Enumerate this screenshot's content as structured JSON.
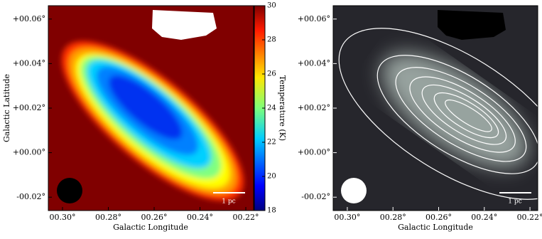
{
  "chart_data": [
    {
      "type": "image",
      "xlabel": "Galactic Longitude",
      "ylabel": "Galactic Latitude",
      "xlim": [
        0.3062,
        0.2166
      ],
      "ylim": [
        -0.026,
        0.066
      ],
      "xticks": [
        {
          "value": 0.3,
          "label": "00.30°"
        },
        {
          "value": 0.28,
          "label": "00.28°"
        },
        {
          "value": 0.26,
          "label": "00.26°"
        },
        {
          "value": 0.24,
          "label": "00.24°"
        },
        {
          "value": 0.22,
          "label": "00.22°"
        }
      ],
      "yticks": [
        {
          "value": 0.06,
          "label": "+00.06°"
        },
        {
          "value": 0.04,
          "label": "+00.04°"
        },
        {
          "value": 0.02,
          "label": "+00.02°"
        },
        {
          "value": 0.0,
          "label": "+00.00°"
        },
        {
          "value": -0.02,
          "label": "-00.02°"
        }
      ],
      "colorbar": {
        "label": "Temperature (K)",
        "lim": [
          18,
          30
        ],
        "ticks": [
          18,
          20,
          22,
          24,
          26,
          28,
          30
        ]
      },
      "scalebar": "1 pc"
    },
    {
      "type": "contour",
      "xlabel": "Galactic Longitude",
      "xlim": [
        0.3062,
        0.2166
      ],
      "ylim": [
        -0.026,
        0.066
      ],
      "xticks": [
        {
          "value": 0.3,
          "label": "00.30°"
        },
        {
          "value": 0.28,
          "label": "00.28°"
        },
        {
          "value": 0.26,
          "label": "00.26°"
        },
        {
          "value": 0.24,
          "label": "00.24°"
        },
        {
          "value": 0.22,
          "label": "00.22°"
        }
      ],
      "yticks": [
        {
          "value": 0.06,
          "label": "+00.06°"
        },
        {
          "value": 0.04,
          "label": "+00.04°"
        },
        {
          "value": 0.02,
          "label": "+00.02°"
        },
        {
          "value": 0.0,
          "label": "+00.00°"
        },
        {
          "value": -0.02,
          "label": "-00.02°"
        }
      ],
      "scalebar": "1 pc"
    }
  ]
}
